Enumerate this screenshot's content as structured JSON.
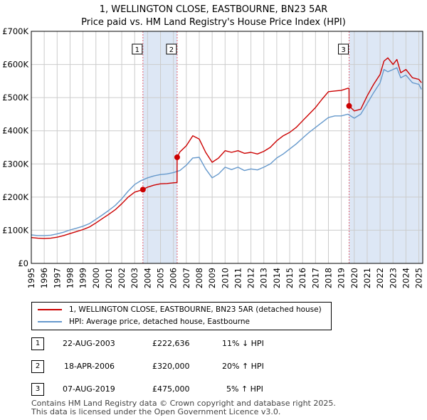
{
  "title": "1, WELLINGTON CLOSE, EASTBOURNE, BN23 5AR",
  "subtitle": "Price paid vs. HM Land Registry's House Price Index (HPI)",
  "colors": {
    "property": "#cc0000",
    "hpi": "#6699cc",
    "band": "#dde7f5",
    "marker_line": "#e06070",
    "grid": "#cccccc"
  },
  "legend": {
    "property_label": "1, WELLINGTON CLOSE, EASTBOURNE, BN23 5AR (detached house)",
    "hpi_label": "HPI: Average price, detached house, Eastbourne"
  },
  "sales": [
    {
      "num": "1",
      "date": "22-AUG-2003",
      "price": "£222,636",
      "hpi_change": "11% ↓ HPI"
    },
    {
      "num": "2",
      "date": "18-APR-2006",
      "price": "£320,000",
      "hpi_change": "20% ↑ HPI"
    },
    {
      "num": "3",
      "date": "07-AUG-2019",
      "price": "£475,000",
      "hpi_change": "5% ↑ HPI"
    }
  ],
  "footer": {
    "line1": "Contains HM Land Registry data © Crown copyright and database right 2025.",
    "line2": "This data is licensed under the Open Government Licence v3.0."
  },
  "chart_data": {
    "type": "line",
    "title": "1, WELLINGTON CLOSE, EASTBOURNE, BN23 5AR",
    "subtitle": "Price paid vs. HM Land Registry's House Price Index (HPI)",
    "xlim": [
      1995,
      2025.3
    ],
    "ylim": [
      0,
      700000
    ],
    "y_ticks": [
      0,
      100000,
      200000,
      300000,
      400000,
      500000,
      600000,
      700000
    ],
    "y_tick_labels": [
      "£0",
      "£100K",
      "£200K",
      "£300K",
      "£400K",
      "£500K",
      "£600K",
      "£700K"
    ],
    "x_ticks": [
      1995,
      1996,
      1997,
      1998,
      1999,
      2000,
      2001,
      2002,
      2003,
      2004,
      2005,
      2006,
      2007,
      2008,
      2009,
      2010,
      2011,
      2012,
      2013,
      2014,
      2015,
      2016,
      2017,
      2018,
      2019,
      2020,
      2021,
      2022,
      2023,
      2024,
      2025
    ],
    "grid": true,
    "shaded_ranges": [
      [
        2003.64,
        2006.29
      ],
      [
        2019.6,
        2025.3
      ]
    ],
    "sale_markers": [
      {
        "label": "1",
        "x": 2003.64,
        "y": 222636
      },
      {
        "label": "2",
        "x": 2006.29,
        "y": 320000
      },
      {
        "label": "3",
        "x": 2019.6,
        "y": 475000
      }
    ],
    "series": [
      {
        "name": "1, WELLINGTON CLOSE, EASTBOURNE, BN23 5AR (detached house)",
        "color": "#cc0000",
        "x": [
          1995.0,
          1995.5,
          1996.0,
          1996.5,
          1997.0,
          1997.5,
          1998.0,
          1998.5,
          1999.0,
          1999.5,
          2000.0,
          2000.5,
          2001.0,
          2001.5,
          2002.0,
          2002.5,
          2003.0,
          2003.64,
          2004.0,
          2004.5,
          2005.0,
          2005.5,
          2006.0,
          2006.28,
          2006.29,
          2006.5,
          2007.0,
          2007.5,
          2008.0,
          2008.5,
          2009.0,
          2009.5,
          2010.0,
          2010.5,
          2011.0,
          2011.5,
          2012.0,
          2012.5,
          2013.0,
          2013.5,
          2014.0,
          2014.5,
          2015.0,
          2015.5,
          2016.0,
          2016.5,
          2017.0,
          2017.5,
          2018.0,
          2018.5,
          2019.0,
          2019.5,
          2019.59,
          2019.6,
          2020.0,
          2020.5,
          2021.0,
          2021.5,
          2022.0,
          2022.3,
          2022.6,
          2023.0,
          2023.3,
          2023.6,
          2024.0,
          2024.5,
          2025.0,
          2025.2
        ],
        "y": [
          78000,
          76000,
          75000,
          76000,
          79000,
          84000,
          90000,
          96000,
          102000,
          110000,
          122000,
          135000,
          148000,
          162000,
          180000,
          200000,
          215000,
          222636,
          230000,
          236000,
          240000,
          241000,
          243000,
          244000,
          320000,
          336000,
          355000,
          385000,
          375000,
          335000,
          305000,
          318000,
          340000,
          335000,
          340000,
          332000,
          335000,
          330000,
          338000,
          350000,
          370000,
          385000,
          395000,
          410000,
          430000,
          450000,
          470000,
          495000,
          518000,
          520000,
          522000,
          528000,
          528000,
          475000,
          460000,
          465000,
          505000,
          540000,
          570000,
          610000,
          620000,
          600000,
          615000,
          575000,
          585000,
          560000,
          555000,
          545000
        ]
      },
      {
        "name": "HPI: Average price, detached house, Eastbourne",
        "color": "#6699cc",
        "x": [
          1995.0,
          1995.5,
          1996.0,
          1996.5,
          1997.0,
          1997.5,
          1998.0,
          1998.5,
          1999.0,
          1999.5,
          2000.0,
          2000.5,
          2001.0,
          2001.5,
          2002.0,
          2002.5,
          2003.0,
          2003.5,
          2004.0,
          2004.5,
          2005.0,
          2005.5,
          2006.0,
          2006.5,
          2007.0,
          2007.5,
          2008.0,
          2008.5,
          2009.0,
          2009.5,
          2010.0,
          2010.5,
          2011.0,
          2011.5,
          2012.0,
          2012.5,
          2013.0,
          2013.5,
          2014.0,
          2014.5,
          2015.0,
          2015.5,
          2016.0,
          2016.5,
          2017.0,
          2017.5,
          2018.0,
          2018.5,
          2019.0,
          2019.5,
          2020.0,
          2020.5,
          2021.0,
          2021.5,
          2022.0,
          2022.3,
          2022.6,
          2023.0,
          2023.3,
          2023.6,
          2024.0,
          2024.5,
          2025.0,
          2025.2
        ],
        "y": [
          86000,
          84000,
          84000,
          85000,
          89000,
          94000,
          101000,
          106000,
          112000,
          120000,
          133000,
          146000,
          160000,
          175000,
          195000,
          218000,
          238000,
          250000,
          258000,
          264000,
          268000,
          270000,
          274000,
          280000,
          296000,
          318000,
          320000,
          285000,
          258000,
          270000,
          290000,
          283000,
          290000,
          280000,
          285000,
          282000,
          290000,
          300000,
          318000,
          330000,
          345000,
          360000,
          378000,
          395000,
          410000,
          425000,
          440000,
          445000,
          445000,
          450000,
          438000,
          450000,
          482000,
          515000,
          545000,
          585000,
          578000,
          585000,
          590000,
          560000,
          568000,
          545000,
          540000,
          525000
        ]
      }
    ]
  }
}
